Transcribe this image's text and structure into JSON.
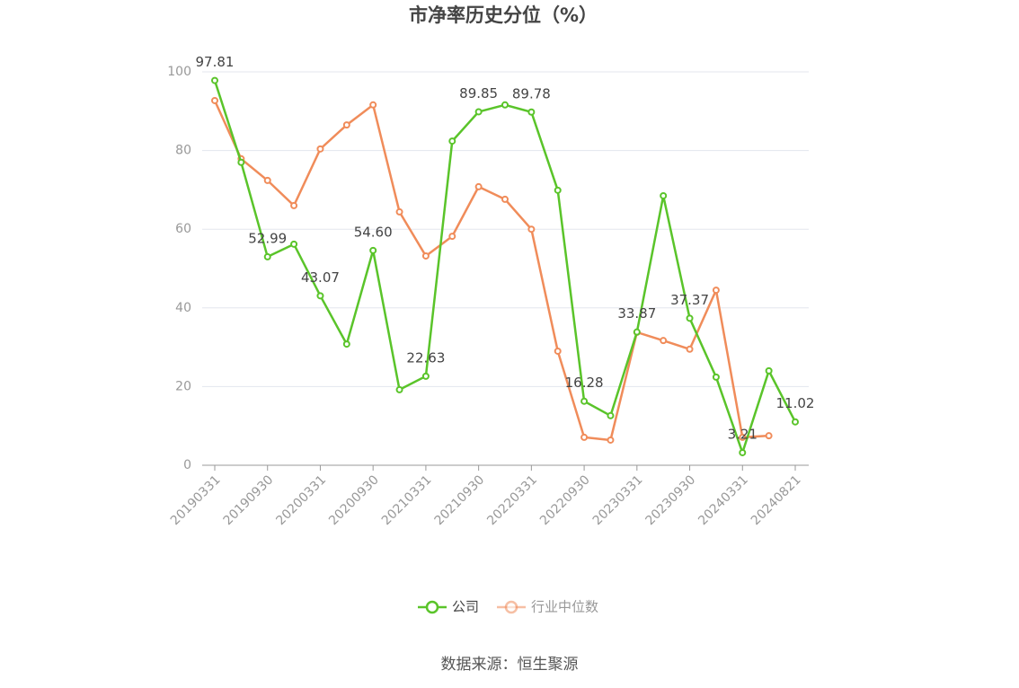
{
  "chart_data": {
    "type": "line",
    "title": "市净率历史分位（%）",
    "categories": [
      "20190331",
      null,
      "20190930",
      null,
      "20200331",
      null,
      "20200930",
      null,
      "20210331",
      null,
      "20210930",
      null,
      "20220331",
      null,
      "20220930",
      null,
      "20230331",
      null,
      "20230930",
      null,
      "20240331",
      null,
      "20240821"
    ],
    "series": [
      {
        "name": "公司",
        "color": "#5ac42a",
        "values": [
          97.81,
          77.0,
          52.99,
          56.2,
          43.07,
          30.8,
          54.6,
          19.2,
          22.63,
          82.4,
          89.85,
          91.6,
          89.78,
          69.9,
          16.28,
          12.6,
          33.87,
          68.5,
          37.37,
          22.4,
          3.21,
          24.0,
          11.02
        ],
        "value_labels": [
          "97.81",
          null,
          "52.99",
          null,
          "43.07",
          null,
          "54.60",
          null,
          "22.63",
          null,
          "89.85",
          null,
          "89.78",
          null,
          "16.28",
          null,
          "33.87",
          null,
          "37.37",
          null,
          "3.21",
          null,
          "11.02"
        ]
      },
      {
        "name": "行业中位数",
        "color": "#f08c5a",
        "values": [
          92.7,
          77.9,
          72.4,
          66.0,
          80.4,
          86.5,
          91.6,
          64.4,
          53.2,
          58.2,
          70.8,
          67.6,
          60.0,
          29.0,
          7.1,
          6.4,
          33.8,
          31.7,
          29.5,
          44.5,
          7.1,
          7.5,
          null
        ]
      }
    ],
    "ylim": [
      0,
      100
    ],
    "yticks": [
      0,
      20,
      40,
      60,
      80,
      100
    ],
    "grid": true,
    "source": "数据来源：恒生聚源"
  }
}
